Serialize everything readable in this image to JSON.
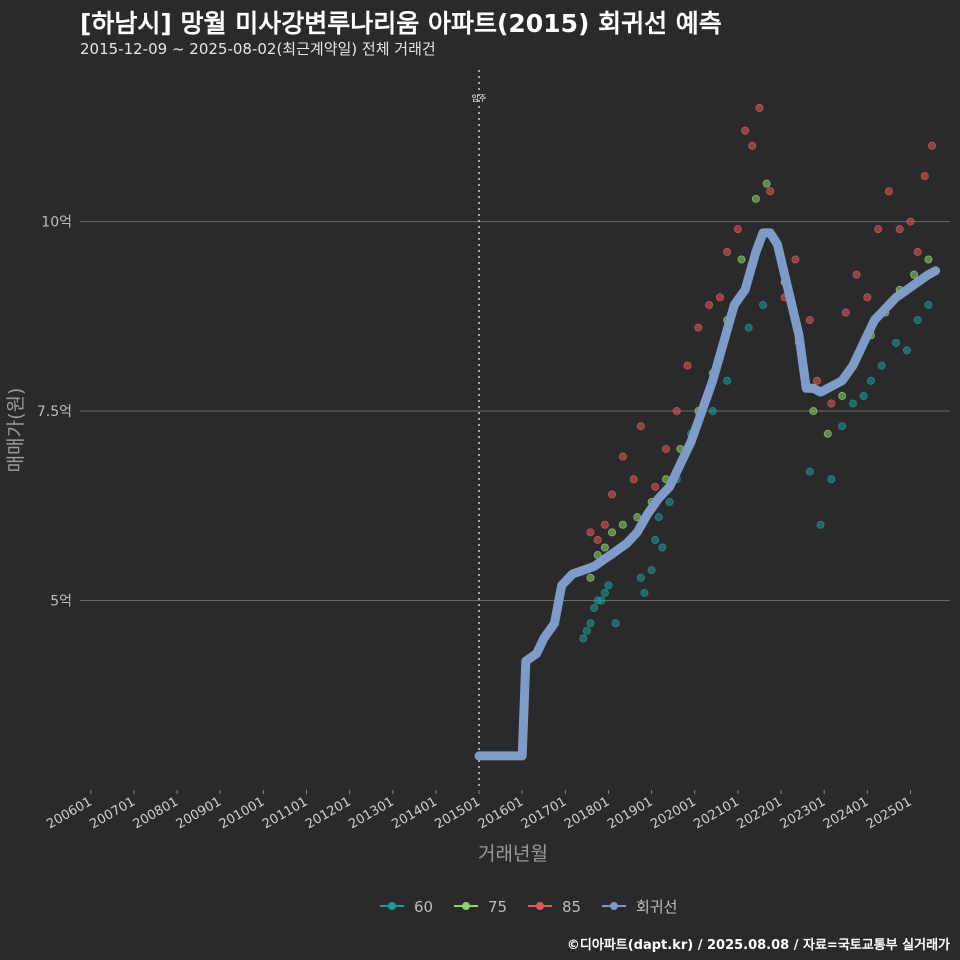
{
  "title": "[하남시] 망월 미사강변루나리움 아파트(2015) 회귀선 예측",
  "subtitle": "2015-12-09 ~ 2025-08-02(최근계약일) 전체 거래건",
  "credit": "©디아파트(dapt.kr) / 2025.08.08 / 자료=국토교통부 실거래가",
  "chart_data": {
    "type": "scatter",
    "xlabel": "거래년월",
    "ylabel": "매매가(원)",
    "x_ticks": [
      "200601",
      "200701",
      "200801",
      "200901",
      "201001",
      "201101",
      "201201",
      "201301",
      "201401",
      "201501",
      "201601",
      "201701",
      "201801",
      "201901",
      "202001",
      "202101",
      "202201",
      "202301",
      "202401",
      "202501"
    ],
    "y_ticks": [
      {
        "value": 5.0,
        "label": "5억"
      },
      {
        "value": 7.5,
        "label": "7.5억"
      },
      {
        "value": 10.0,
        "label": "10억"
      }
    ],
    "xlim": [
      "2005-10",
      "2025-12"
    ],
    "ylim": [
      2.5,
      12.0
    ],
    "grid": true,
    "legend_position": "bottom",
    "annotation": {
      "x": "2015-01",
      "label": "입주"
    },
    "colors": {
      "60": "#1f9a96",
      "75": "#8fd46b",
      "85": "#e05a5a",
      "회귀선": "#7f9cc8"
    },
    "series": [
      {
        "name": "60",
        "type": "scatter",
        "points": [
          [
            "2017-06",
            4.5
          ],
          [
            "2017-07",
            4.6
          ],
          [
            "2017-08",
            4.7
          ],
          [
            "2017-09",
            4.9
          ],
          [
            "2017-10",
            5.0
          ],
          [
            "2017-11",
            5.0
          ],
          [
            "2017-12",
            5.1
          ],
          [
            "2018-01",
            5.2
          ],
          [
            "2018-02",
            5.6
          ],
          [
            "2018-03",
            4.7
          ],
          [
            "2018-10",
            5.3
          ],
          [
            "2018-11",
            5.1
          ],
          [
            "2019-01",
            5.4
          ],
          [
            "2019-02",
            5.8
          ],
          [
            "2019-03",
            6.1
          ],
          [
            "2019-04",
            5.7
          ],
          [
            "2019-06",
            6.3
          ],
          [
            "2019-08",
            6.6
          ],
          [
            "2019-10",
            6.9
          ],
          [
            "2019-12",
            7.2
          ],
          [
            "2020-06",
            7.5
          ],
          [
            "2020-10",
            7.9
          ],
          [
            "2021-04",
            8.6
          ],
          [
            "2021-08",
            8.9
          ],
          [
            "2022-09",
            6.7
          ],
          [
            "2022-12",
            6.0
          ],
          [
            "2023-03",
            6.6
          ],
          [
            "2023-06",
            7.3
          ],
          [
            "2023-09",
            7.6
          ],
          [
            "2023-12",
            7.7
          ],
          [
            "2024-02",
            7.9
          ],
          [
            "2024-05",
            8.1
          ],
          [
            "2024-09",
            8.4
          ],
          [
            "2024-12",
            8.3
          ],
          [
            "2025-03",
            8.7
          ],
          [
            "2025-06",
            8.9
          ]
        ]
      },
      {
        "name": "75",
        "type": "scatter",
        "points": [
          [
            "2017-08",
            5.3
          ],
          [
            "2017-10",
            5.6
          ],
          [
            "2017-12",
            5.7
          ],
          [
            "2018-02",
            5.9
          ],
          [
            "2018-05",
            6.0
          ],
          [
            "2018-09",
            6.1
          ],
          [
            "2019-01",
            6.3
          ],
          [
            "2019-05",
            6.6
          ],
          [
            "2019-09",
            7.0
          ],
          [
            "2020-02",
            7.5
          ],
          [
            "2020-06",
            8.0
          ],
          [
            "2020-10",
            8.7
          ],
          [
            "2021-02",
            9.5
          ],
          [
            "2021-06",
            10.3
          ],
          [
            "2021-09",
            10.5
          ],
          [
            "2022-02",
            9.2
          ],
          [
            "2022-06",
            8.4
          ],
          [
            "2022-10",
            7.5
          ],
          [
            "2023-02",
            7.2
          ],
          [
            "2023-06",
            7.7
          ],
          [
            "2023-10",
            8.2
          ],
          [
            "2024-02",
            8.5
          ],
          [
            "2024-06",
            8.8
          ],
          [
            "2024-10",
            9.1
          ],
          [
            "2025-02",
            9.3
          ],
          [
            "2025-06",
            9.5
          ]
        ]
      },
      {
        "name": "85",
        "type": "scatter",
        "points": [
          [
            "2017-08",
            5.9
          ],
          [
            "2017-10",
            5.8
          ],
          [
            "2017-12",
            6.0
          ],
          [
            "2018-02",
            6.4
          ],
          [
            "2018-05",
            6.9
          ],
          [
            "2018-08",
            6.6
          ],
          [
            "2018-10",
            7.3
          ],
          [
            "2019-02",
            6.5
          ],
          [
            "2019-05",
            7.0
          ],
          [
            "2019-08",
            7.5
          ],
          [
            "2019-11",
            8.1
          ],
          [
            "2020-02",
            8.6
          ],
          [
            "2020-05",
            8.9
          ],
          [
            "2020-08",
            9.0
          ],
          [
            "2020-10",
            9.6
          ],
          [
            "2021-01",
            9.9
          ],
          [
            "2021-03",
            11.2
          ],
          [
            "2021-05",
            11.0
          ],
          [
            "2021-07",
            11.5
          ],
          [
            "2021-10",
            10.4
          ],
          [
            "2022-02",
            9.0
          ],
          [
            "2022-05",
            9.5
          ],
          [
            "2022-09",
            8.7
          ],
          [
            "2022-11",
            7.9
          ],
          [
            "2023-03",
            7.6
          ],
          [
            "2023-07",
            8.8
          ],
          [
            "2023-10",
            9.3
          ],
          [
            "2024-01",
            9.0
          ],
          [
            "2024-04",
            9.9
          ],
          [
            "2024-07",
            10.4
          ],
          [
            "2024-10",
            9.9
          ],
          [
            "2025-01",
            10.0
          ],
          [
            "2025-03",
            9.6
          ],
          [
            "2025-05",
            10.6
          ],
          [
            "2025-07",
            11.0
          ]
        ]
      },
      {
        "name": "회귀선",
        "type": "line",
        "points": [
          [
            "2015-01",
            2.95
          ],
          [
            "2016-01",
            2.95
          ],
          [
            "2016-02",
            4.2
          ],
          [
            "2016-05",
            4.3
          ],
          [
            "2016-07",
            4.5
          ],
          [
            "2016-10",
            4.7
          ],
          [
            "2016-12",
            5.2
          ],
          [
            "2017-03",
            5.35
          ],
          [
            "2017-06",
            5.4
          ],
          [
            "2017-09",
            5.45
          ],
          [
            "2017-12",
            5.55
          ],
          [
            "2018-03",
            5.65
          ],
          [
            "2018-06",
            5.75
          ],
          [
            "2018-09",
            5.9
          ],
          [
            "2018-12",
            6.15
          ],
          [
            "2019-03",
            6.35
          ],
          [
            "2019-06",
            6.5
          ],
          [
            "2019-09",
            6.8
          ],
          [
            "2019-12",
            7.1
          ],
          [
            "2020-03",
            7.5
          ],
          [
            "2020-06",
            7.9
          ],
          [
            "2020-09",
            8.4
          ],
          [
            "2020-12",
            8.9
          ],
          [
            "2021-03",
            9.1
          ],
          [
            "2021-06",
            9.6
          ],
          [
            "2021-08",
            9.85
          ],
          [
            "2021-10",
            9.85
          ],
          [
            "2021-12",
            9.7
          ],
          [
            "2022-03",
            9.1
          ],
          [
            "2022-06",
            8.5
          ],
          [
            "2022-08",
            7.8
          ],
          [
            "2022-10",
            7.8
          ],
          [
            "2022-12",
            7.75
          ],
          [
            "2023-02",
            7.8
          ],
          [
            "2023-04",
            7.85
          ],
          [
            "2023-06",
            7.9
          ],
          [
            "2023-09",
            8.1
          ],
          [
            "2023-12",
            8.4
          ],
          [
            "2024-03",
            8.7
          ],
          [
            "2024-06",
            8.85
          ],
          [
            "2024-09",
            9.0
          ],
          [
            "2024-12",
            9.1
          ],
          [
            "2025-03",
            9.2
          ],
          [
            "2025-06",
            9.3
          ],
          [
            "2025-08",
            9.35
          ]
        ]
      }
    ]
  }
}
